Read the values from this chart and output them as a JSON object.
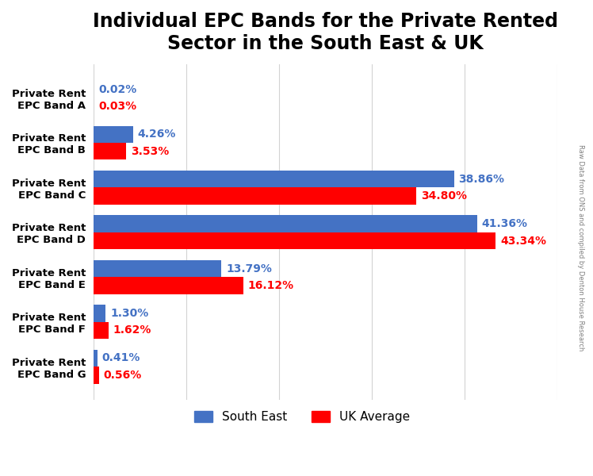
{
  "title": "Individual EPC Bands for the Private Rented\nSector in the South East & UK",
  "bands": [
    "A",
    "B",
    "C",
    "D",
    "E",
    "F",
    "G"
  ],
  "south_east": [
    0.02,
    4.26,
    38.86,
    41.36,
    13.79,
    1.3,
    0.41
  ],
  "uk_average": [
    0.03,
    3.53,
    34.8,
    43.34,
    16.12,
    1.62,
    0.56
  ],
  "south_east_color": "#4472C4",
  "uk_average_color": "#FF0000",
  "bar_height": 0.38,
  "xlim": [
    0,
    50
  ],
  "legend_south_east": "South East",
  "legend_uk_average": "UK Average",
  "watermark": "Raw Data from ONS and compiled by Denton House Research",
  "title_fontsize": 17,
  "label_fontsize": 9.5,
  "value_fontsize": 10
}
